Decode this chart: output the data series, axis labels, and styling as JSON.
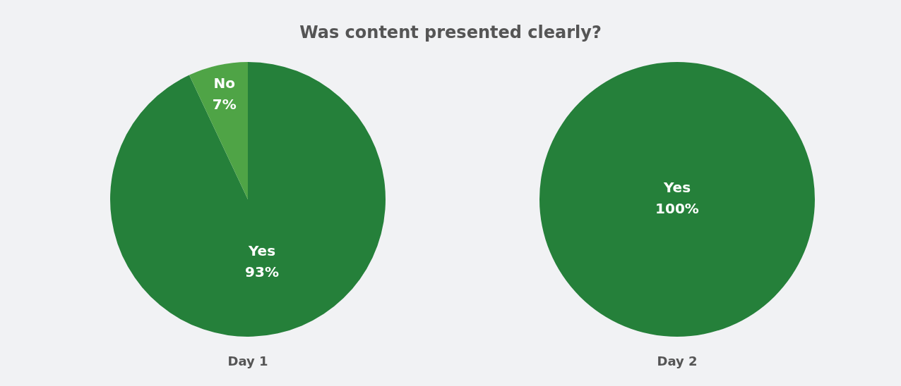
{
  "chart_data": [
    {
      "type": "pie",
      "title": "Was content presented clearly?",
      "xlabel": "Day 1",
      "categories": [
        "Yes",
        "No"
      ],
      "values": [
        93,
        7
      ],
      "value_labels": [
        "93%",
        "7%"
      ],
      "colors": [
        "#25803a",
        "#4fa446"
      ]
    },
    {
      "type": "pie",
      "xlabel": "Day 2",
      "categories": [
        "Yes"
      ],
      "values": [
        100
      ],
      "value_labels": [
        "100%"
      ],
      "colors": [
        "#25803a"
      ]
    }
  ]
}
